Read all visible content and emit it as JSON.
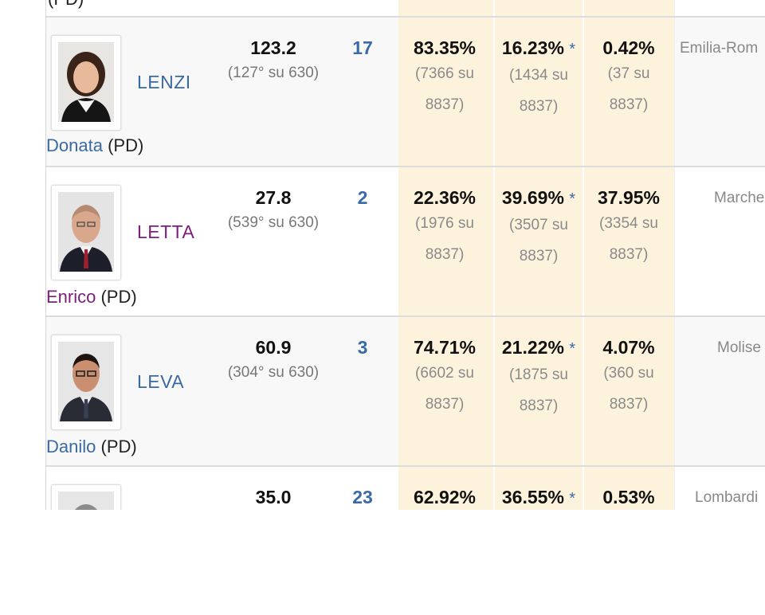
{
  "table": {
    "previous_row_party": "(PD)",
    "rows": [
      {
        "surname": "LENZI",
        "first_name": "Donata",
        "party": "(PD)",
        "name_color": "#3a6aa5",
        "score": "123.2",
        "rank": "(127° su 630)",
        "count": "17",
        "pct1": "83.35%",
        "pct1_detail_a": "(7366 su",
        "pct1_detail_b": "8837)",
        "pct2": "16.23%",
        "pct2_detail_a": "(1434 su",
        "pct2_detail_b": "8837)",
        "pct3": "0.42%",
        "pct3_detail_a": "(37 su",
        "pct3_detail_b": "8837)",
        "star": "*",
        "region": "Emilia-Rom"
      },
      {
        "surname": "LETTA",
        "first_name": "Enrico",
        "party": "(PD)",
        "name_color": "#7a1f7a",
        "score": "27.8",
        "rank": "(539° su 630)",
        "count": "2",
        "pct1": "22.36%",
        "pct1_detail_a": "(1976 su",
        "pct1_detail_b": "8837)",
        "pct2": "39.69%",
        "pct2_detail_a": "(3507 su",
        "pct2_detail_b": "8837)",
        "pct3": "37.95%",
        "pct3_detail_a": "(3354 su",
        "pct3_detail_b": "8837)",
        "star": "*",
        "region": "Marche"
      },
      {
        "surname": "LEVA",
        "first_name": "Danilo",
        "party": "(PD)",
        "name_color": "#3a6aa5",
        "score": "60.9",
        "rank": "(304° su 630)",
        "count": "3",
        "pct1": "74.71%",
        "pct1_detail_a": "(6602 su",
        "pct1_detail_b": "8837)",
        "pct2": "21.22%",
        "pct2_detail_a": "(1875 su",
        "pct2_detail_b": "8837)",
        "pct3": "4.07%",
        "pct3_detail_a": "(360 su",
        "pct3_detail_b": "8837)",
        "star": "*",
        "region": "Molise"
      },
      {
        "surname": "",
        "first_name": "",
        "party": "",
        "score": "35.0",
        "rank": "",
        "count": "23",
        "pct1": "62.92%",
        "pct2": "36.55%",
        "pct3": "0.53%",
        "star": "*",
        "region": "Lombardi"
      }
    ]
  },
  "colors": {
    "highlight_band": "#fdf3dd",
    "link_blue": "#3a6aa5",
    "visited_purple": "#7a1f7a",
    "row_shade": "#f8f8f8"
  }
}
